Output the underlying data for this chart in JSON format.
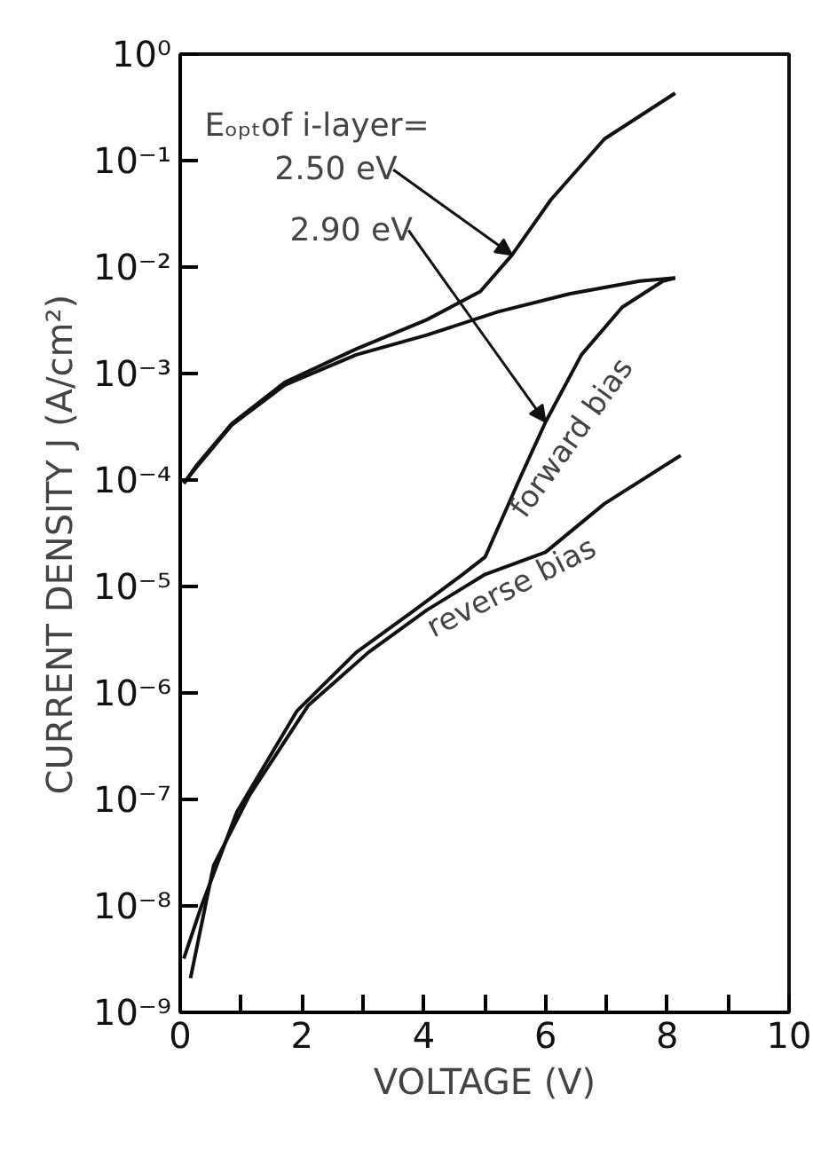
{
  "chart_data": {
    "type": "line",
    "xlabel": "VOLTAGE (V)",
    "ylabel": "CURRENT DENSITY  J  (A/cm²)",
    "log": "y",
    "grid": false,
    "marker": "none",
    "line_style": "solid",
    "xlim": [
      0,
      10
    ],
    "xticks": [
      0,
      {
        "value": 1,
        "label": null
      },
      2,
      {
        "value": 3,
        "label": null
      },
      4,
      {
        "value": 5,
        "label": null
      },
      6,
      {
        "value": 7,
        "label": null
      },
      8,
      {
        "value": 9,
        "label": null
      },
      10
    ],
    "ylim": [
      1e-09,
      1
    ],
    "yticks": [
      {
        "value": 1e-09,
        "label": "10⁻⁹"
      },
      {
        "value": 1e-08,
        "label": "10⁻⁸"
      },
      {
        "value": 1e-07,
        "label": "10⁻⁷"
      },
      {
        "value": 1e-06,
        "label": "10⁻⁶"
      },
      {
        "value": 1e-05,
        "label": "10⁻⁵"
      },
      {
        "value": 0.0001,
        "label": "10⁻⁴"
      },
      {
        "value": 0.001,
        "label": "10⁻³"
      },
      {
        "value": 0.01,
        "label": "10⁻²"
      },
      {
        "value": 0.1,
        "label": "10⁻¹"
      },
      {
        "value": 1,
        "label": "10⁰"
      }
    ],
    "series": [
      {
        "color": "#111111",
        "x": [
          0.06,
          0.26,
          0.85,
          1.72,
          2.89,
          4.05,
          4.93,
          5.45,
          6.09,
          6.97,
          8.13
        ],
        "values": [
          9.3e-05,
          0.000135,
          0.00034,
          0.00083,
          0.0017,
          0.0032,
          0.0059,
          0.013,
          0.043,
          0.16,
          0.43
        ]
      },
      {
        "color": "#111111",
        "x": [
          0.06,
          0.26,
          0.85,
          1.72,
          2.89,
          4.05,
          5.22,
          6.39,
          7.55,
          8.13
        ],
        "values": [
          9.3e-05,
          0.00013,
          0.00033,
          0.00078,
          0.0015,
          0.0023,
          0.0038,
          0.0056,
          0.0074,
          0.0079
        ]
      },
      {
        "name": "forward bias",
        "color": "#111111",
        "x": [
          0.06,
          0.35,
          0.93,
          1.92,
          2.89,
          3.85,
          4.64,
          5.01,
          5.6,
          6.0,
          6.59,
          7.26,
          7.93,
          8.13
        ],
        "values": [
          3.2e-09,
          1e-08,
          7.6e-08,
          6.8e-07,
          2.4e-06,
          6e-06,
          1.3e-05,
          1.9e-05,
          0.00011,
          0.00035,
          0.0015,
          0.0042,
          0.0074,
          0.0079
        ]
      },
      {
        "name": "reverse bias",
        "color": "#111111",
        "x": [
          0.17,
          0.55,
          1.14,
          2.1,
          3.09,
          4.05,
          5.01,
          6.0,
          6.97,
          8.22
        ],
        "values": [
          2.1e-09,
          2.4e-08,
          1.1e-07,
          7.6e-07,
          2.4e-06,
          6e-06,
          1.3e-05,
          2.1e-05,
          6e-05,
          0.00017
        ]
      }
    ],
    "annotations": [
      {
        "text": "Eₒₚₜof i-layer="
      },
      {
        "text": "2.50 eV",
        "x": 5.45,
        "y": 0.013
      },
      {
        "text": "2.90 eV",
        "x": 6.0,
        "y": 0.00035
      }
    ]
  }
}
